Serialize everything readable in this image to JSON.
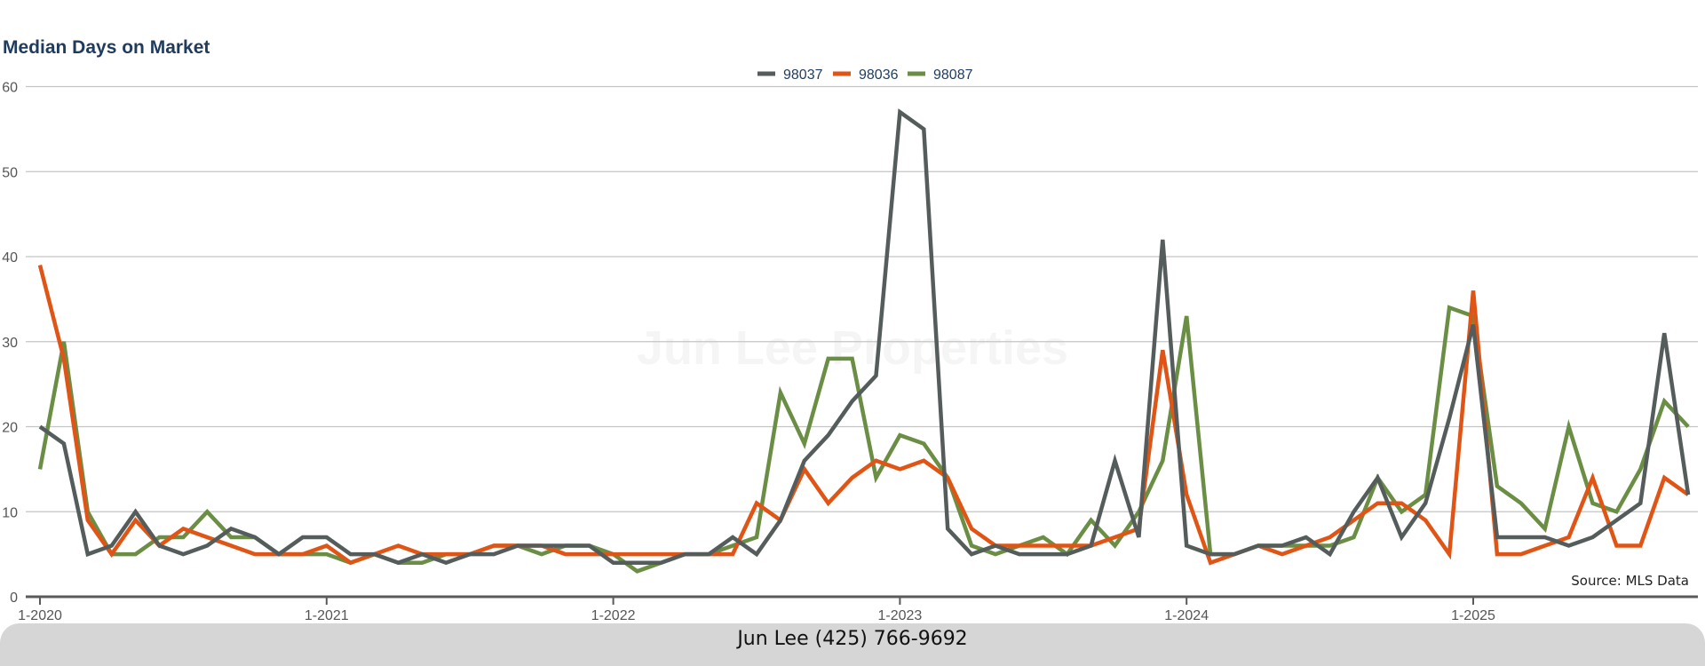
{
  "chart_data": {
    "type": "line",
    "title": "Median Days on Market",
    "xlabel": "",
    "ylabel": "",
    "ylim": [
      0,
      60
    ],
    "yticks": [
      0,
      10,
      20,
      30,
      40,
      50,
      60
    ],
    "xticks": [
      "1-2020",
      "1-2021",
      "1-2022",
      "1-2023",
      "1-2024",
      "1-2025"
    ],
    "legend_position": "top-center",
    "grid": "horizontal",
    "x": [
      "1-2020",
      "2-2020",
      "3-2020",
      "4-2020",
      "5-2020",
      "6-2020",
      "7-2020",
      "8-2020",
      "9-2020",
      "10-2020",
      "11-2020",
      "12-2020",
      "1-2021",
      "2-2021",
      "3-2021",
      "4-2021",
      "5-2021",
      "6-2021",
      "7-2021",
      "8-2021",
      "9-2021",
      "10-2021",
      "11-2021",
      "12-2021",
      "1-2022",
      "2-2022",
      "3-2022",
      "4-2022",
      "5-2022",
      "6-2022",
      "7-2022",
      "8-2022",
      "9-2022",
      "10-2022",
      "11-2022",
      "12-2022",
      "1-2023",
      "2-2023",
      "3-2023",
      "4-2023",
      "5-2023",
      "6-2023",
      "7-2023",
      "8-2023",
      "9-2023",
      "10-2023",
      "11-2023",
      "12-2023",
      "1-2024",
      "2-2024",
      "3-2024",
      "4-2024",
      "5-2024",
      "6-2024",
      "7-2024",
      "8-2024",
      "9-2024",
      "10-2024",
      "11-2024",
      "12-2024",
      "1-2025",
      "2-2025",
      "3-2025",
      "4-2025",
      "5-2025",
      "6-2025",
      "7-2025",
      "8-2025",
      "9-2025",
      "10-2025"
    ],
    "series": [
      {
        "name": "98037",
        "color": "#555d5c",
        "values": [
          20,
          18,
          5,
          6,
          10,
          6,
          5,
          6,
          8,
          7,
          5,
          7,
          7,
          5,
          5,
          4,
          5,
          4,
          5,
          5,
          6,
          6,
          6,
          6,
          4,
          4,
          4,
          5,
          5,
          7,
          5,
          9,
          16,
          19,
          23,
          26,
          57,
          55,
          8,
          5,
          6,
          5,
          5,
          5,
          6,
          16,
          7,
          42,
          6,
          5,
          5,
          6,
          6,
          7,
          5,
          10,
          14,
          7,
          11,
          21,
          32,
          7,
          7,
          7,
          6,
          7,
          9,
          11,
          31,
          12
        ]
      },
      {
        "name": "98036",
        "color": "#e05515",
        "values": [
          39,
          28,
          9,
          5,
          9,
          6,
          8,
          7,
          6,
          5,
          5,
          5,
          6,
          4,
          5,
          6,
          5,
          5,
          5,
          6,
          6,
          6,
          5,
          5,
          5,
          5,
          5,
          5,
          5,
          5,
          11,
          9,
          15,
          11,
          14,
          16,
          15,
          16,
          14,
          8,
          6,
          6,
          6,
          6,
          6,
          7,
          8,
          29,
          12,
          4,
          5,
          6,
          5,
          6,
          7,
          9,
          11,
          11,
          9,
          5,
          36,
          5,
          5,
          6,
          7,
          14,
          6,
          6,
          14,
          12
        ]
      },
      {
        "name": "98087",
        "color": "#6b8e45",
        "values": [
          15,
          30,
          10,
          5,
          5,
          7,
          7,
          10,
          7,
          7,
          5,
          5,
          5,
          4,
          5,
          4,
          4,
          5,
          5,
          6,
          6,
          5,
          6,
          6,
          5,
          3,
          4,
          5,
          5,
          6,
          7,
          24,
          18,
          28,
          28,
          14,
          19,
          18,
          14,
          6,
          5,
          6,
          7,
          5,
          9,
          6,
          10,
          16,
          33,
          5,
          5,
          6,
          6,
          6,
          6,
          7,
          14,
          10,
          12,
          34,
          33,
          13,
          11,
          8,
          20,
          11,
          10,
          15,
          23,
          20
        ]
      }
    ],
    "source": "Source: MLS Data",
    "watermark": "Jun Lee Properties"
  },
  "footer": {
    "text": "Jun Lee (425) 766-9692"
  }
}
